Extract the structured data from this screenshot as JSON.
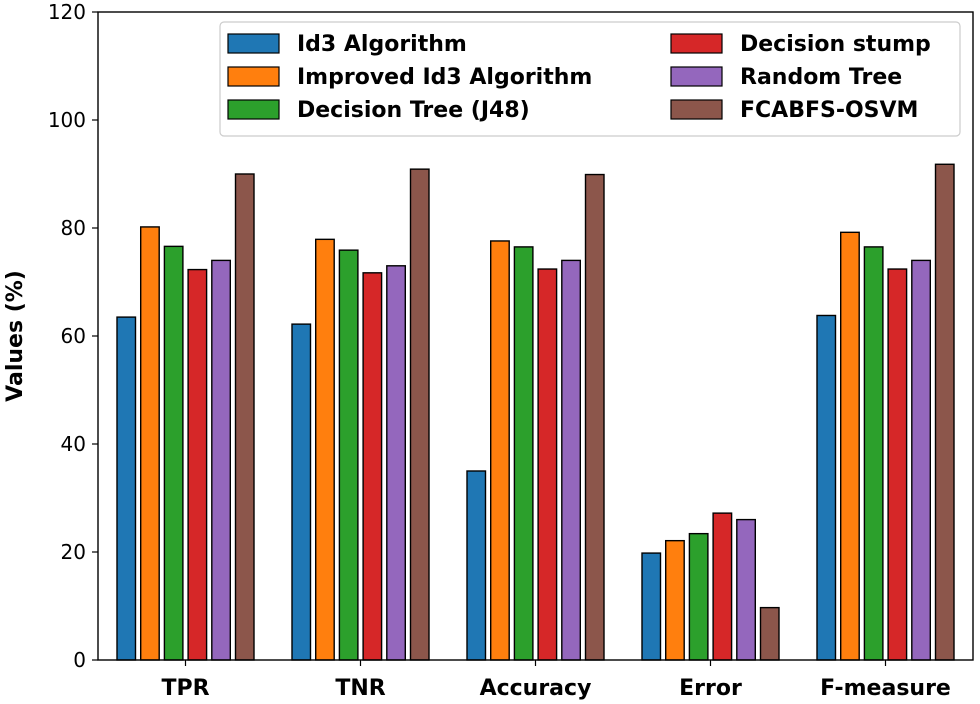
{
  "chart_data": {
    "type": "bar",
    "title": "",
    "xlabel": "",
    "ylabel": "Values (%)",
    "ylim": [
      0,
      120
    ],
    "yticks": [
      0,
      20,
      40,
      60,
      80,
      100,
      120
    ],
    "grid": false,
    "legend_position": "top-right",
    "categories": [
      "TPR",
      "TNR",
      "Accuracy",
      "Error",
      "F-measure"
    ],
    "series": [
      {
        "name": "Id3 Algorithm",
        "color": "#1f77b4",
        "values": [
          63.5,
          62.2,
          35.0,
          19.8,
          63.8
        ]
      },
      {
        "name": "Improved Id3 Algorithm",
        "color": "#ff7f0e",
        "values": [
          80.2,
          77.9,
          77.6,
          22.1,
          79.2
        ]
      },
      {
        "name": "Decision Tree (J48)",
        "color": "#2ca02c",
        "values": [
          76.6,
          75.9,
          76.5,
          23.4,
          76.5
        ]
      },
      {
        "name": "Decision stump",
        "color": "#d62728",
        "values": [
          72.3,
          71.7,
          72.4,
          27.2,
          72.4
        ]
      },
      {
        "name": "Random Tree",
        "color": "#9467bd",
        "values": [
          74.0,
          73.0,
          74.0,
          26.0,
          74.0
        ]
      },
      {
        "name": "FCABFS-OSVM",
        "color": "#8c564b",
        "values": [
          90.0,
          90.9,
          89.9,
          9.7,
          91.8
        ]
      }
    ]
  }
}
